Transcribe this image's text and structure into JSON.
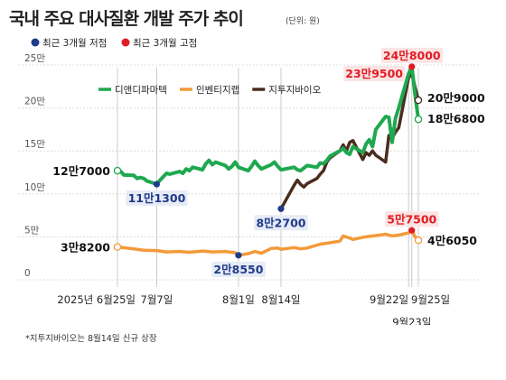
{
  "header": {
    "title": "국내 주요 대사질환 개발 주가 추이",
    "unit": "(단위: 원)"
  },
  "marker_legend": [
    {
      "label": "최근 3개월 저점",
      "color": "#1f3a8a"
    },
    {
      "label": "최근 3개월 고점",
      "color": "#e11b22"
    }
  ],
  "footnote": "*지투지바이오는 8월14일 신규 상장",
  "chart_data": {
    "type": "line",
    "x_dates": [
      "2025-06-25",
      "2025-07-07",
      "2025-08-01",
      "2025-08-14",
      "2025-09-22",
      "2025-09-23",
      "2025-09-25"
    ],
    "x_tick_labels": [
      {
        "date": "2025-06-25",
        "label": "2025년 6월25일",
        "row": 0
      },
      {
        "date": "2025-07-07",
        "label": "7월7일",
        "row": 0
      },
      {
        "date": "2025-08-01",
        "label": "8월1일",
        "row": 0
      },
      {
        "date": "2025-08-14",
        "label": "8월14일",
        "row": 0
      },
      {
        "date": "2025-09-22",
        "label": "9월22일",
        "row": 0
      },
      {
        "date": "2025-09-23",
        "label": "9월23일",
        "row": 1
      },
      {
        "date": "2025-09-25",
        "label": "9월25일",
        "row": 0
      }
    ],
    "ylim": [
      0,
      250000
    ],
    "y_ticks": [
      {
        "value": 0,
        "label": "0"
      },
      {
        "value": 50000,
        "label": "5만"
      },
      {
        "value": 100000,
        "label": "10만"
      },
      {
        "value": 150000,
        "label": "15만"
      },
      {
        "value": 200000,
        "label": "20만"
      },
      {
        "value": 250000,
        "label": "25만"
      }
    ],
    "grid": true,
    "legend_position": "top-center",
    "series": [
      {
        "name": "디앤디파마텍",
        "color": "#1fa84f",
        "points": [
          [
            "2025-06-25",
            127000
          ],
          [
            "2025-06-26",
            126000
          ],
          [
            "2025-06-27",
            122000
          ],
          [
            "2025-06-30",
            121500
          ],
          [
            "2025-07-01",
            118000
          ],
          [
            "2025-07-02",
            119000
          ],
          [
            "2025-07-03",
            118000
          ],
          [
            "2025-07-04",
            115000
          ],
          [
            "2025-07-07",
            111300
          ],
          [
            "2025-07-08",
            116000
          ],
          [
            "2025-07-09",
            120000
          ],
          [
            "2025-07-10",
            124000
          ],
          [
            "2025-07-11",
            123000
          ],
          [
            "2025-07-14",
            126000
          ],
          [
            "2025-07-15",
            124000
          ],
          [
            "2025-07-16",
            129000
          ],
          [
            "2025-07-17",
            127000
          ],
          [
            "2025-07-18",
            131000
          ],
          [
            "2025-07-21",
            128000
          ],
          [
            "2025-07-22",
            135000
          ],
          [
            "2025-07-23",
            139000
          ],
          [
            "2025-07-24",
            134000
          ],
          [
            "2025-07-25",
            137000
          ],
          [
            "2025-07-28",
            133000
          ],
          [
            "2025-07-29",
            129000
          ],
          [
            "2025-07-30",
            132000
          ],
          [
            "2025-07-31",
            137000
          ],
          [
            "2025-08-01",
            131000
          ],
          [
            "2025-08-04",
            127000
          ],
          [
            "2025-08-05",
            132000
          ],
          [
            "2025-08-06",
            138000
          ],
          [
            "2025-08-07",
            133000
          ],
          [
            "2025-08-08",
            129000
          ],
          [
            "2025-08-11",
            134000
          ],
          [
            "2025-08-12",
            137000
          ],
          [
            "2025-08-13",
            132000
          ],
          [
            "2025-08-14",
            128000
          ],
          [
            "2025-08-18",
            131000
          ],
          [
            "2025-08-19",
            128000
          ],
          [
            "2025-08-20",
            127000
          ],
          [
            "2025-08-21",
            130000
          ],
          [
            "2025-08-22",
            133000
          ],
          [
            "2025-08-25",
            131000
          ],
          [
            "2025-08-26",
            136000
          ],
          [
            "2025-08-27",
            135000
          ],
          [
            "2025-08-28",
            139000
          ],
          [
            "2025-08-29",
            144000
          ],
          [
            "2025-09-01",
            150000
          ],
          [
            "2025-09-02",
            153000
          ],
          [
            "2025-09-03",
            148000
          ],
          [
            "2025-09-04",
            146000
          ],
          [
            "2025-09-05",
            155000
          ],
          [
            "2025-09-08",
            148000
          ],
          [
            "2025-09-09",
            158000
          ],
          [
            "2025-09-10",
            163000
          ],
          [
            "2025-09-11",
            155000
          ],
          [
            "2025-09-12",
            175000
          ],
          [
            "2025-09-15",
            190000
          ],
          [
            "2025-09-16",
            189000
          ],
          [
            "2025-09-17",
            160000
          ],
          [
            "2025-09-18",
            188000
          ],
          [
            "2025-09-19",
            200000
          ],
          [
            "2025-09-22",
            239500
          ],
          [
            "2025-09-23",
            248000
          ],
          [
            "2025-09-24",
            215000
          ],
          [
            "2025-09-25",
            186800
          ]
        ]
      },
      {
        "name": "인벤티지랩",
        "color": "#f39a3a",
        "points": [
          [
            "2025-06-25",
            38200
          ],
          [
            "2025-06-30",
            36000
          ],
          [
            "2025-07-03",
            34500
          ],
          [
            "2025-07-07",
            34000
          ],
          [
            "2025-07-10",
            32500
          ],
          [
            "2025-07-14",
            33000
          ],
          [
            "2025-07-17",
            32000
          ],
          [
            "2025-07-21",
            33500
          ],
          [
            "2025-07-24",
            32500
          ],
          [
            "2025-07-28",
            33000
          ],
          [
            "2025-07-31",
            31500
          ],
          [
            "2025-08-01",
            28550
          ],
          [
            "2025-08-04",
            30500
          ],
          [
            "2025-08-06",
            33000
          ],
          [
            "2025-08-08",
            31000
          ],
          [
            "2025-08-11",
            36500
          ],
          [
            "2025-08-13",
            37000
          ],
          [
            "2025-08-14",
            35500
          ],
          [
            "2025-08-18",
            37500
          ],
          [
            "2025-08-20",
            36000
          ],
          [
            "2025-08-22",
            37000
          ],
          [
            "2025-08-26",
            41500
          ],
          [
            "2025-08-28",
            42500
          ],
          [
            "2025-09-01",
            45000
          ],
          [
            "2025-09-02",
            51000
          ],
          [
            "2025-09-04",
            48500
          ],
          [
            "2025-09-05",
            47000
          ],
          [
            "2025-09-08",
            49500
          ],
          [
            "2025-09-10",
            50500
          ],
          [
            "2025-09-12",
            51500
          ],
          [
            "2025-09-15",
            53000
          ],
          [
            "2025-09-17",
            51000
          ],
          [
            "2025-09-19",
            52000
          ],
          [
            "2025-09-22",
            54500
          ],
          [
            "2025-09-23",
            57500
          ],
          [
            "2025-09-24",
            50000
          ],
          [
            "2025-09-25",
            46050
          ]
        ]
      },
      {
        "name": "지투지바이오",
        "color": "#4a2c1f",
        "points": [
          [
            "2025-08-14",
            82700
          ],
          [
            "2025-08-18",
            110000
          ],
          [
            "2025-08-19",
            116000
          ],
          [
            "2025-08-20",
            111000
          ],
          [
            "2025-08-21",
            108000
          ],
          [
            "2025-08-22",
            112000
          ],
          [
            "2025-08-25",
            118000
          ],
          [
            "2025-08-26",
            123000
          ],
          [
            "2025-08-27",
            127000
          ],
          [
            "2025-08-28",
            137000
          ],
          [
            "2025-08-29",
            142000
          ],
          [
            "2025-09-01",
            150000
          ],
          [
            "2025-09-02",
            157000
          ],
          [
            "2025-09-03",
            150000
          ],
          [
            "2025-09-04",
            160000
          ],
          [
            "2025-09-05",
            162000
          ],
          [
            "2025-09-08",
            140000
          ],
          [
            "2025-09-09",
            148000
          ],
          [
            "2025-09-10",
            145000
          ],
          [
            "2025-09-11",
            150000
          ],
          [
            "2025-09-12",
            145000
          ],
          [
            "2025-09-15",
            137000
          ],
          [
            "2025-09-16",
            168000
          ],
          [
            "2025-09-17",
            165000
          ],
          [
            "2025-09-18",
            172000
          ],
          [
            "2025-09-19",
            177000
          ],
          [
            "2025-09-22",
            235000
          ],
          [
            "2025-09-23",
            240000
          ],
          [
            "2025-09-24",
            224000
          ],
          [
            "2025-09-25",
            209000
          ]
        ]
      }
    ],
    "annotations": [
      {
        "series": 0,
        "date": "2025-06-25",
        "value": 127000,
        "marker": "open",
        "big": "12만",
        "small": "7000",
        "box": false,
        "anchor": "left"
      },
      {
        "series": 0,
        "date": "2025-07-07",
        "value": 111300,
        "marker": "low",
        "big": "11만",
        "small": "1300",
        "box": true,
        "anchor": "below"
      },
      {
        "series": 2,
        "date": "2025-08-14",
        "value": 82700,
        "marker": "low",
        "big": "8만",
        "small": "2700",
        "box": true,
        "anchor": "below"
      },
      {
        "series": 0,
        "date": "2025-09-22",
        "value": 239500,
        "marker": "none",
        "big": "23만",
        "small": "9500",
        "box": true,
        "anchor": "left-of"
      },
      {
        "series": 0,
        "date": "2025-09-23",
        "value": 248000,
        "marker": "high",
        "big": "24만",
        "small": "8000",
        "box": true,
        "anchor": "above"
      },
      {
        "series": 2,
        "date": "2025-09-25",
        "value": 209000,
        "marker": "open",
        "big": "20만",
        "small": "9000",
        "box": false,
        "anchor": "right"
      },
      {
        "series": 0,
        "date": "2025-09-25",
        "value": 186800,
        "marker": "open",
        "big": "18만",
        "small": "6800",
        "box": false,
        "anchor": "right"
      },
      {
        "series": 1,
        "date": "2025-06-25",
        "value": 38200,
        "marker": "open",
        "big": "3만",
        "small": "8200",
        "box": false,
        "anchor": "left"
      },
      {
        "series": 1,
        "date": "2025-08-01",
        "value": 28550,
        "marker": "low",
        "big": "2만",
        "small": "8550",
        "box": true,
        "anchor": "below"
      },
      {
        "series": 1,
        "date": "2025-09-23",
        "value": 57500,
        "marker": "high",
        "big": "5만",
        "small": "7500",
        "box": true,
        "anchor": "above"
      },
      {
        "series": 1,
        "date": "2025-09-25",
        "value": 46050,
        "marker": "open",
        "big": "4만",
        "small": "6050",
        "box": false,
        "anchor": "right"
      }
    ]
  }
}
